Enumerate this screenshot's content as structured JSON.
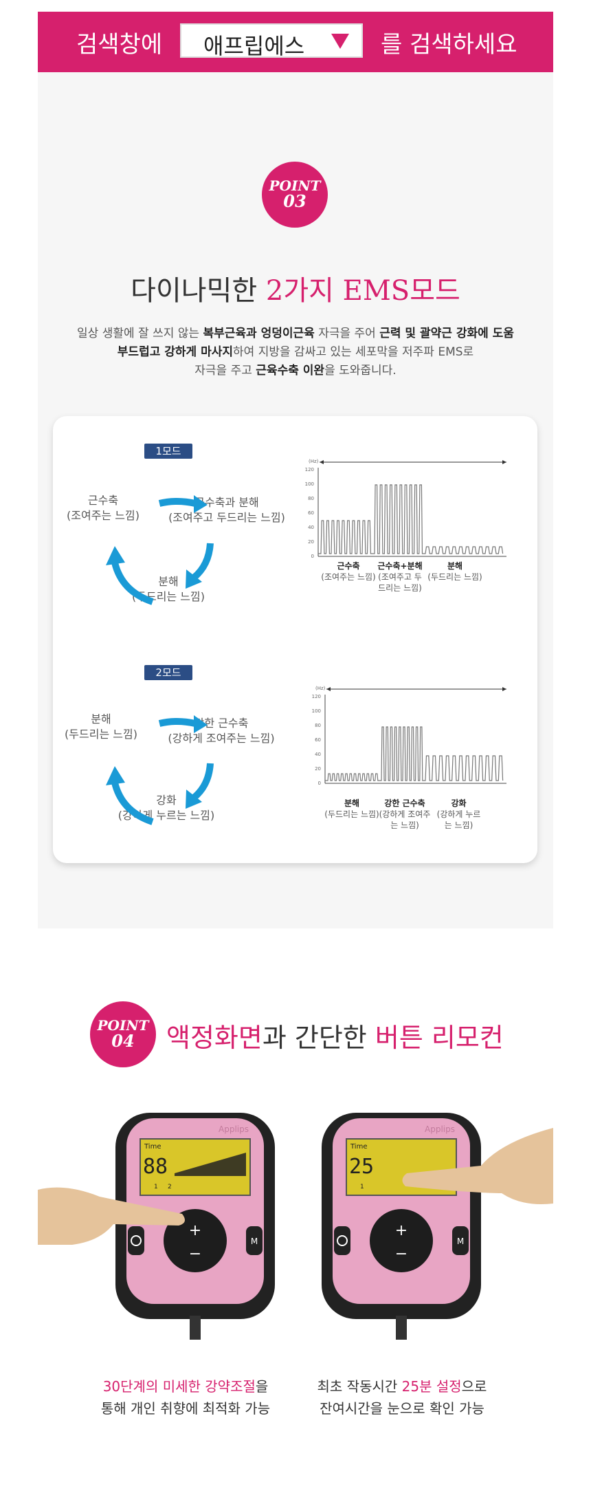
{
  "search_banner": {
    "prefix": "검색창에",
    "keyword": "애프립에스",
    "suffix": "를 검색하세요"
  },
  "point03": {
    "badge_top": "POINT",
    "badge_num": "03",
    "title_plain": "다이나믹한",
    "title_pink": "2가지 EMS모드",
    "desc": {
      "line1": [
        "일상 생활에 잘 쓰지 않는 ",
        "복부근육과 엉덩이근육",
        " 자극을 주어 ",
        "근력 및 괄약근 강화에 도움"
      ],
      "line2": [
        "부드럽고 강하게 마사지",
        "하여 지방을 감싸고 있는 세포막을 저주파 EMS로"
      ],
      "line3": [
        "자극을 주고 ",
        "근육수축 이완",
        "을 도와줍니다."
      ]
    }
  },
  "mode1": {
    "label": "1모드",
    "cycle": [
      {
        "title": "근수축",
        "sub": "(조여주는 느낌)"
      },
      {
        "title": "근수축과 분해",
        "sub": "(조여주고 두드리는 느낌)"
      },
      {
        "title": "분해",
        "sub": "(두드리는 느낌)"
      }
    ],
    "graph": {
      "unit": "(Hz)",
      "yticks": [
        "120",
        "100",
        "80",
        "60",
        "40",
        "20",
        "0"
      ],
      "labels": [
        {
          "title": "근수축",
          "sub": "(조여주는 느낌)"
        },
        {
          "title": "근수축+분해",
          "sub": "(조여주고 두드리는 느낌)"
        },
        {
          "title": "분해",
          "sub": "(두드리는 느낌)"
        }
      ]
    }
  },
  "mode2": {
    "label": "2모드",
    "cycle": [
      {
        "title": "분해",
        "sub": "(두드리는 느낌)"
      },
      {
        "title": "강한  근수축",
        "sub": "(강하게 조여주는 느낌)"
      },
      {
        "title": "강화",
        "sub": "(강하게 누르는 느낌)"
      }
    ],
    "graph": {
      "unit": "(Hz)",
      "yticks": [
        "120",
        "100",
        "80",
        "60",
        "40",
        "20",
        "0"
      ],
      "labels": [
        {
          "title": "분해",
          "sub": "(두드리는 느낌)"
        },
        {
          "title": "강한 근수축",
          "sub": "(강하게 조여주는 느낌)"
        },
        {
          "title": "강화",
          "sub": "(강하게 누르는 느낌)"
        }
      ]
    }
  },
  "point04": {
    "badge_top": "POINT",
    "badge_num": "04",
    "title_pink1": "액정화면",
    "title_plain1": "과 간단한",
    "title_pink2": "버튼 리모컨",
    "remote_left": {
      "brand": "Applips",
      "screen_label": "Time",
      "screen_value": "88",
      "marks": [
        "1",
        "2"
      ],
      "plus": "+",
      "minus": "−",
      "mode_btn": "M"
    },
    "remote_right": {
      "brand": "Applips",
      "screen_label": "Time",
      "screen_value": "25",
      "marks": [
        "1"
      ],
      "plus": "+",
      "minus": "−",
      "mode_btn": "M"
    },
    "caption_left": {
      "pink": "30단계의 미세한 강약조절",
      "rest1": "을",
      "line2": "통해 개인 취향에 최적화 가능"
    },
    "caption_right": {
      "prefix": "최초 작동시간 ",
      "pink": "25분 설정",
      "rest1": "으로",
      "line2": "잔여시간을 눈으로 확인 가능"
    }
  },
  "colors": {
    "brand_pink": "#d6206d",
    "mode_blue": "#2b4d85",
    "arrow_blue": "#1a9ad6"
  }
}
